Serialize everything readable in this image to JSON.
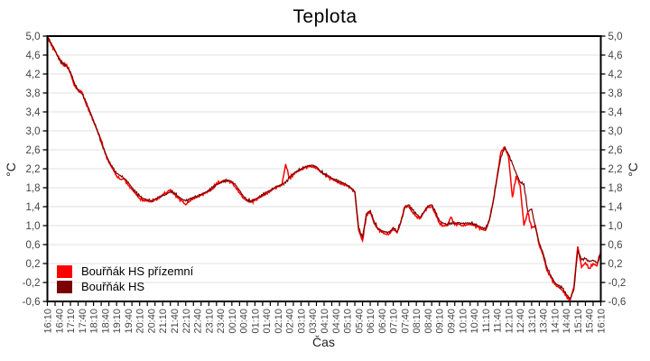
{
  "chart_data": {
    "type": "line",
    "title": "Teplota",
    "xlabel": "Čas",
    "ylabel_left": "°C",
    "ylabel_right": "°C",
    "grid": "horizontal",
    "legend_position": "bottom-left",
    "ylim": [
      -0.6,
      5.0
    ],
    "y_tick_step": 0.4,
    "y_ticks": [
      5.0,
      4.6,
      4.2,
      3.8,
      3.4,
      3.0,
      2.6,
      2.2,
      1.8,
      1.4,
      1.0,
      0.6,
      0.2,
      -0.2,
      -0.6
    ],
    "y_tick_labels": [
      "5,0",
      "4,6",
      "4,2",
      "3,8",
      "3,4",
      "3,0",
      "2,6",
      "2,2",
      "1,8",
      "1,4",
      "1,0",
      "0,6",
      "0,2",
      "-0,2",
      "-0,6"
    ],
    "x_tick_labels": [
      "16:10",
      "16:40",
      "17:10",
      "17:40",
      "18:10",
      "18:40",
      "19:10",
      "19:40",
      "20:10",
      "20:40",
      "21:10",
      "21:40",
      "22:10",
      "22:40",
      "23:10",
      "23:40",
      "00:10",
      "00:40",
      "01:10",
      "01:40",
      "02:10",
      "02:40",
      "03:10",
      "03:40",
      "04:10",
      "04:40",
      "05:10",
      "05:40",
      "06:10",
      "06:40",
      "07:10",
      "07:40",
      "08:10",
      "08:40",
      "09:10",
      "09:40",
      "10:10",
      "10:40",
      "11:10",
      "11:40",
      "12:10",
      "12:40",
      "13:10",
      "13:40",
      "14:10",
      "14:40",
      "15:10",
      "15:40",
      "16:10"
    ],
    "x_minor_tick_count": 73,
    "x_start": "16:10",
    "x_end": "16:10",
    "sample_interval_minutes": 10,
    "series": [
      {
        "name": "Bouřňák HS přízemní",
        "color": "#ff0000",
        "values": [
          5.0,
          4.8,
          4.68,
          4.55,
          4.4,
          4.4,
          4.22,
          3.95,
          3.86,
          3.82,
          3.58,
          3.4,
          3.2,
          3.0,
          2.8,
          2.52,
          2.33,
          2.2,
          2.05,
          1.98,
          1.98,
          1.85,
          1.76,
          1.67,
          1.58,
          1.54,
          1.52,
          1.5,
          1.54,
          1.57,
          1.66,
          1.7,
          1.76,
          1.66,
          1.58,
          1.52,
          1.44,
          1.52,
          1.58,
          1.6,
          1.64,
          1.68,
          1.72,
          1.78,
          1.9,
          1.92,
          1.96,
          1.94,
          1.9,
          1.8,
          1.7,
          1.58,
          1.52,
          1.5,
          1.53,
          1.58,
          1.63,
          1.68,
          1.73,
          1.78,
          1.82,
          1.85,
          2.3,
          2.0,
          2.08,
          2.14,
          2.18,
          2.22,
          2.24,
          2.25,
          2.22,
          2.14,
          2.08,
          2.03,
          1.98,
          1.94,
          1.9,
          1.88,
          1.84,
          1.78,
          1.7,
          0.9,
          0.68,
          1.22,
          1.3,
          1.05,
          0.92,
          0.86,
          0.82,
          0.83,
          0.93,
          0.85,
          1.07,
          1.4,
          1.4,
          1.28,
          1.2,
          1.15,
          1.28,
          1.38,
          1.4,
          1.24,
          1.06,
          1.0,
          1.0,
          1.18,
          1.02,
          1.03,
          1.0,
          1.02,
          1.03,
          1.0,
          0.97,
          0.92,
          0.9,
          1.12,
          1.52,
          2.02,
          2.55,
          2.66,
          2.45,
          1.6,
          2.05,
          1.85,
          1.0,
          1.28,
          0.95,
          1.0,
          0.58,
          0.38,
          0.05,
          -0.1,
          -0.24,
          -0.3,
          -0.36,
          -0.48,
          -0.58,
          -0.3,
          0.56,
          0.12,
          0.22,
          0.1,
          0.2,
          0.15,
          0.45
        ]
      },
      {
        "name": "Bouřňák HS",
        "color": "#7b0000",
        "values": [
          5.0,
          4.85,
          4.7,
          4.5,
          4.42,
          4.36,
          4.25,
          4.02,
          3.85,
          3.78,
          3.62,
          3.42,
          3.22,
          3.02,
          2.76,
          2.55,
          2.36,
          2.22,
          2.1,
          2.06,
          2.0,
          1.92,
          1.8,
          1.7,
          1.62,
          1.57,
          1.55,
          1.53,
          1.56,
          1.6,
          1.63,
          1.66,
          1.72,
          1.7,
          1.62,
          1.56,
          1.52,
          1.55,
          1.6,
          1.63,
          1.66,
          1.7,
          1.74,
          1.8,
          1.86,
          1.9,
          1.94,
          1.96,
          1.93,
          1.85,
          1.74,
          1.62,
          1.55,
          1.52,
          1.55,
          1.6,
          1.65,
          1.7,
          1.75,
          1.8,
          1.84,
          1.87,
          1.9,
          2.02,
          2.1,
          2.16,
          2.2,
          2.24,
          2.26,
          2.27,
          2.24,
          2.16,
          2.1,
          2.05,
          2.0,
          1.96,
          1.92,
          1.9,
          1.86,
          1.8,
          1.72,
          0.95,
          0.74,
          1.25,
          1.32,
          1.1,
          0.95,
          0.89,
          0.86,
          0.86,
          0.96,
          0.88,
          1.1,
          1.38,
          1.44,
          1.33,
          1.24,
          1.18,
          1.3,
          1.42,
          1.44,
          1.28,
          1.1,
          1.05,
          1.03,
          1.06,
          1.05,
          1.06,
          1.04,
          1.05,
          1.06,
          1.04,
          1.0,
          0.96,
          0.93,
          1.1,
          1.5,
          2.0,
          2.45,
          2.64,
          2.5,
          2.3,
          2.1,
          1.92,
          1.88,
          1.3,
          1.35,
          0.95,
          0.62,
          0.42,
          0.12,
          -0.05,
          -0.2,
          -0.27,
          -0.32,
          -0.45,
          -0.54,
          -0.35,
          0.48,
          0.28,
          0.3,
          0.24,
          0.27,
          0.22,
          0.42
        ]
      }
    ],
    "colors": {
      "grid": "#e2e2e2",
      "axis": "#000000",
      "tick_label": "#444444"
    }
  }
}
